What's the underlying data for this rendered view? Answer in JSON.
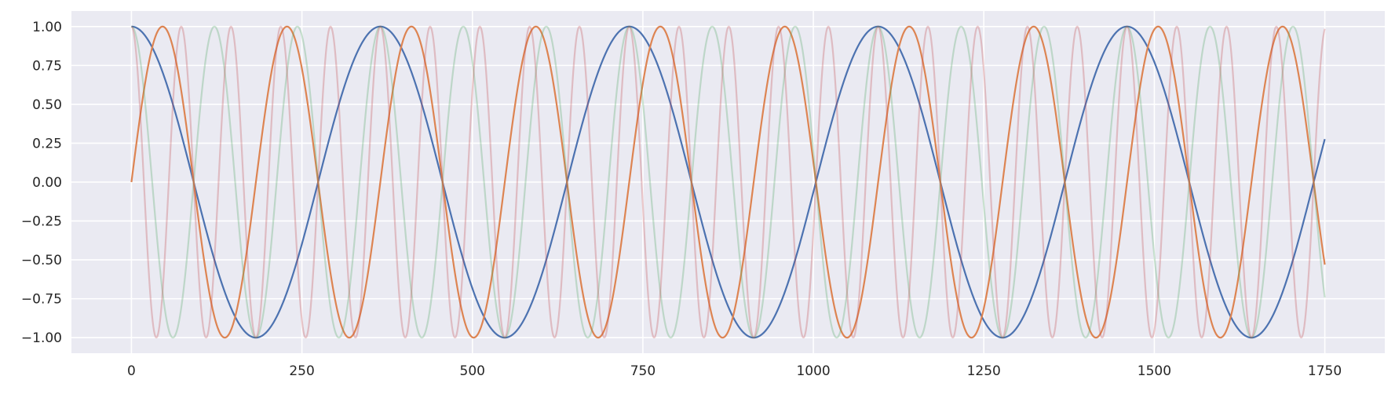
{
  "chart_data": {
    "type": "line",
    "title": "",
    "xlabel": "",
    "ylabel": "",
    "xlim": [
      -88,
      1838
    ],
    "ylim": [
      -1.1,
      1.1
    ],
    "grid": true,
    "legend": "none",
    "x_ticks": [
      0,
      250,
      500,
      750,
      1000,
      1250,
      1500,
      1750
    ],
    "x_tick_labels": [
      "0",
      "250",
      "500",
      "750",
      "1000",
      "1250",
      "1500",
      "1750"
    ],
    "y_ticks": [
      1.0,
      0.75,
      0.5,
      0.25,
      0.0,
      -0.25,
      -0.5,
      -0.75,
      -1.0
    ],
    "y_tick_labels": [
      "1.00",
      "0.75",
      "0.50",
      "0.25",
      "0.00",
      "−0.25",
      "−0.50",
      "−0.75",
      "−1.00"
    ],
    "colors": {
      "background": "#eaeaf2",
      "grid": "#ffffff"
    },
    "series": [
      {
        "function": "cos",
        "x_range": [
          0,
          1750
        ],
        "period": 365,
        "phase": 0,
        "color": "#4c72b0",
        "opacity": 1.0,
        "stroke": 2.2
      },
      {
        "function": "sin",
        "x_range": [
          0,
          1750
        ],
        "period": 182.5,
        "phase": 0,
        "color": "#dd8452",
        "opacity": 1.0,
        "stroke": 2.2
      },
      {
        "function": "cos",
        "x_range": [
          0,
          1750
        ],
        "period": 121.67,
        "phase": 0,
        "color": "#55a868",
        "opacity": 0.3,
        "stroke": 2.2
      },
      {
        "function": "cos",
        "x_range": [
          0,
          1750
        ],
        "period": 73,
        "phase": 0,
        "color": "#c44e52",
        "opacity": 0.3,
        "stroke": 2.2
      }
    ]
  }
}
